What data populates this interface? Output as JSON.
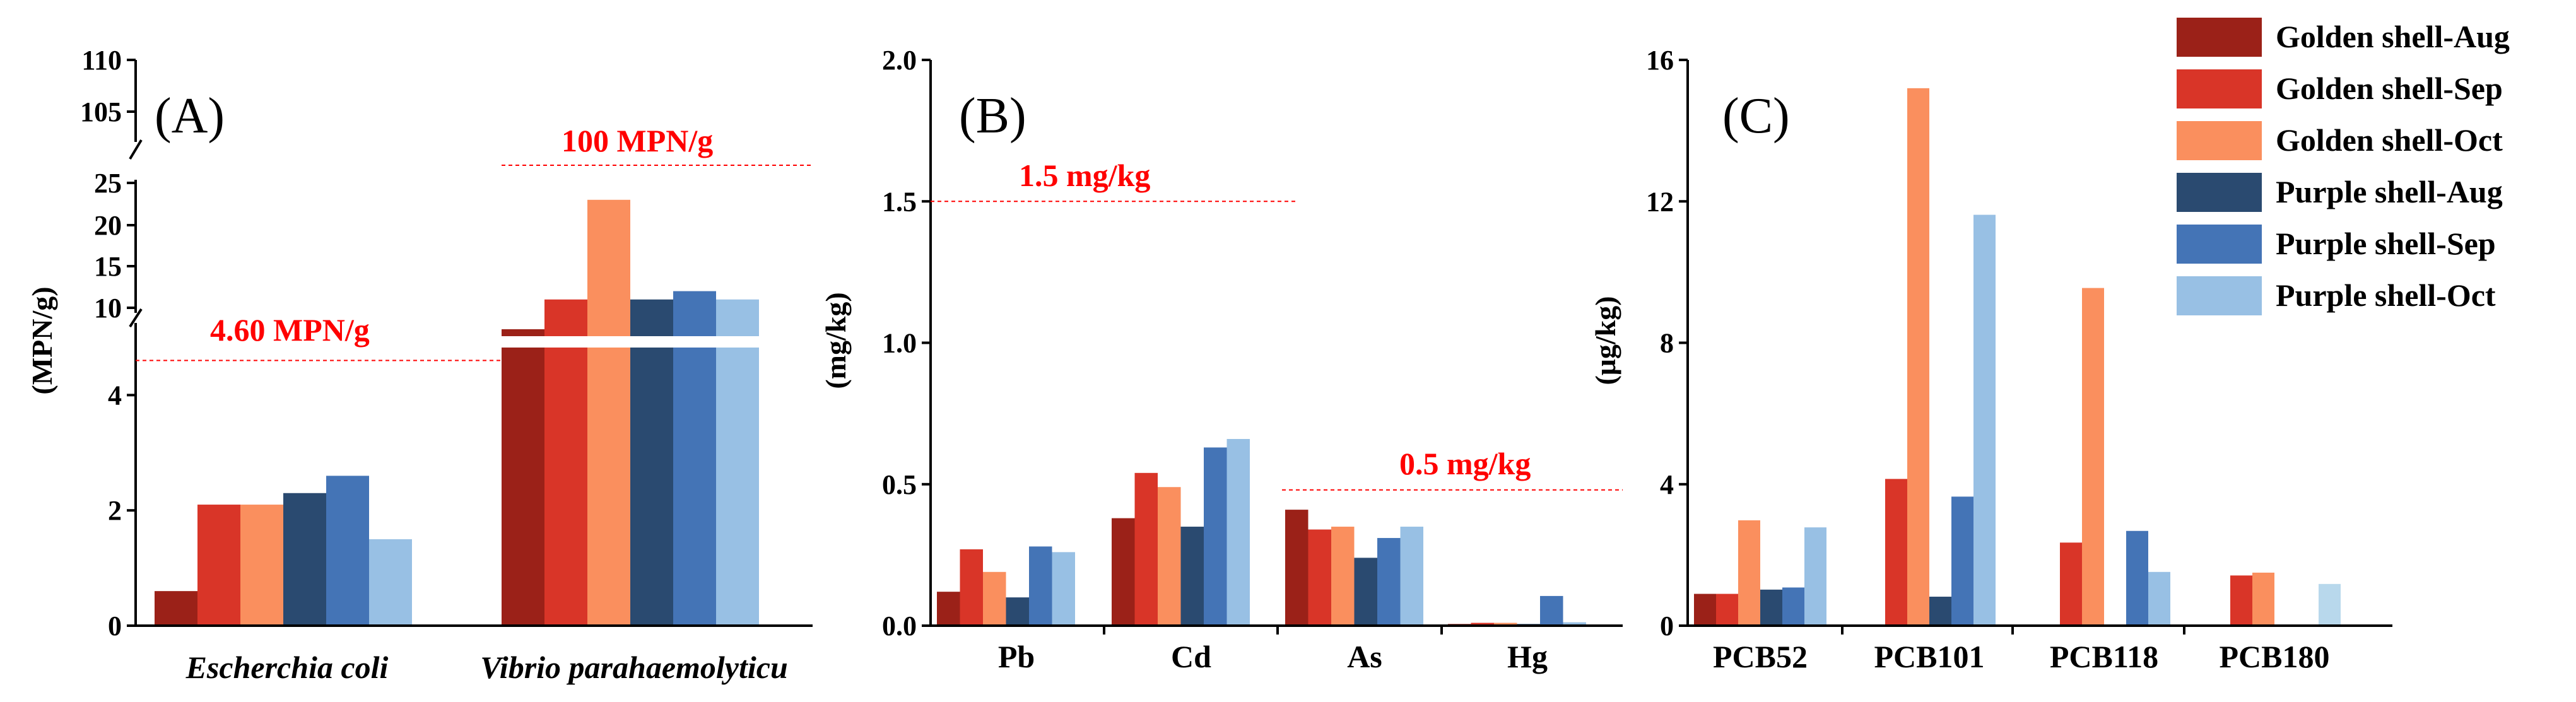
{
  "series_colors": [
    "#9b2118",
    "#d93528",
    "#fa8f5e",
    "#2a4a70",
    "#4474b6",
    "#98c0e4"
  ],
  "oct_light_blue_alt": "#b8d8ec",
  "ref_color": "#ff0000",
  "legend": {
    "entries": [
      "Golden shell-Aug",
      "Golden shell-Sep",
      "Golden shell-Oct",
      "Purple shell-Aug",
      "Purple shell-Sep",
      "Purple shell-Oct"
    ]
  },
  "chart_data": [
    {
      "type": "bar",
      "panel_label": "(A)",
      "ylabel": "(MPN/g)",
      "y_axis_broken": true,
      "ylim_lower": [
        0,
        5
      ],
      "ylim_upper": [
        8,
        110
      ],
      "yticks": [
        "0",
        "2",
        "4",
        "10",
        "15",
        "20",
        "25",
        "105",
        "110"
      ],
      "categories": [
        "Escherchia coli",
        "Vibrio parahaemolyticu"
      ],
      "series": [
        {
          "name": "Golden shell-Aug",
          "values": [
            0.6,
            8.3
          ]
        },
        {
          "name": "Golden shell-Sep",
          "values": [
            2.1,
            11
          ]
        },
        {
          "name": "Golden shell-Oct",
          "values": [
            2.1,
            23
          ]
        },
        {
          "name": "Purple shell-Aug",
          "values": [
            2.3,
            11
          ]
        },
        {
          "name": "Purple shell-Sep",
          "values": [
            2.6,
            12
          ]
        },
        {
          "name": "Purple shell-Oct",
          "values": [
            1.5,
            11
          ]
        }
      ],
      "reference_lines": [
        {
          "label": "4.60 MPN/g",
          "value": 4.6
        },
        {
          "label": "100 MPN/g",
          "value": 100
        }
      ]
    },
    {
      "type": "bar",
      "panel_label": "(B)",
      "ylabel": "(mg/kg)",
      "ylim": [
        0,
        2.0
      ],
      "yticks": [
        "0.0",
        "0.5",
        "1.0",
        "1.5",
        "2.0"
      ],
      "categories": [
        "Pb",
        "Cd",
        "As",
        "Hg"
      ],
      "series": [
        {
          "name": "Golden shell-Aug",
          "values": [
            0.12,
            0.38,
            0.41,
            0.006
          ]
        },
        {
          "name": "Golden shell-Sep",
          "values": [
            0.27,
            0.54,
            0.34,
            0.01
          ]
        },
        {
          "name": "Golden shell-Oct",
          "values": [
            0.19,
            0.49,
            0.35,
            0.01
          ]
        },
        {
          "name": "Purple shell-Aug",
          "values": [
            0.1,
            0.35,
            0.24,
            0.006
          ]
        },
        {
          "name": "Purple shell-Sep",
          "values": [
            0.28,
            0.63,
            0.31,
            0.105
          ]
        },
        {
          "name": "Purple shell-Oct",
          "values": [
            0.26,
            0.66,
            0.35,
            0.012
          ]
        }
      ],
      "reference_lines": [
        {
          "label": "1.5 mg/kg",
          "value": 1.5
        },
        {
          "label": "0.5 mg/kg",
          "value": 0.48
        }
      ]
    },
    {
      "type": "bar",
      "panel_label": "(C)",
      "ylabel": "(μg/kg)",
      "ylim": [
        0,
        16
      ],
      "yticks": [
        "0",
        "4",
        "8",
        "12",
        "16"
      ],
      "categories": [
        "PCB52",
        "PCB101",
        "PCB118",
        "PCB180"
      ],
      "series": [
        {
          "name": "Golden shell-Aug",
          "values": [
            0.9,
            0,
            0,
            0
          ]
        },
        {
          "name": "Golden shell-Sep",
          "values": [
            0.9,
            4.15,
            2.35,
            1.42
          ]
        },
        {
          "name": "Golden shell-Oct",
          "values": [
            2.98,
            15.2,
            9.55,
            1.5
          ]
        },
        {
          "name": "Purple shell-Aug",
          "values": [
            1.02,
            0.82,
            0,
            0
          ]
        },
        {
          "name": "Purple shell-Sep",
          "values": [
            1.08,
            3.65,
            2.68,
            0
          ]
        },
        {
          "name": "Purple shell-Oct",
          "values": [
            2.78,
            11.62,
            1.52,
            1.18
          ]
        }
      ]
    }
  ]
}
